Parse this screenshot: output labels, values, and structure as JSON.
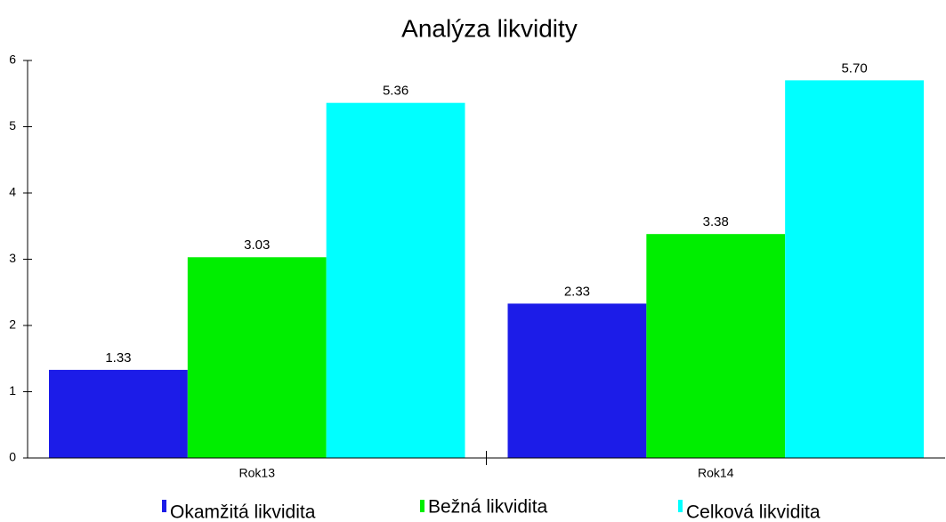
{
  "chart_data": {
    "type": "bar",
    "title": "Analýza likvidity",
    "categories": [
      "Rok13",
      "Rok14"
    ],
    "series": [
      {
        "name": "Okamžitá likvidita",
        "color": "#1c1ce8",
        "values": [
          1.33,
          2.33
        ],
        "value_labels": [
          "1.33",
          "2.33"
        ]
      },
      {
        "name": "Bežná likvidita",
        "color": "#00ee00",
        "values": [
          3.03,
          3.38
        ],
        "value_labels": [
          "3.03",
          "3.38"
        ]
      },
      {
        "name": "Celková likvidita",
        "color": "#00ffff",
        "values": [
          5.36,
          5.7
        ],
        "value_labels": [
          "5.36",
          "5.70"
        ]
      }
    ],
    "ylim": [
      0,
      6
    ],
    "yticks": [
      0,
      1,
      2,
      3,
      4,
      5,
      6
    ],
    "grid": false,
    "legend": "bottom"
  }
}
